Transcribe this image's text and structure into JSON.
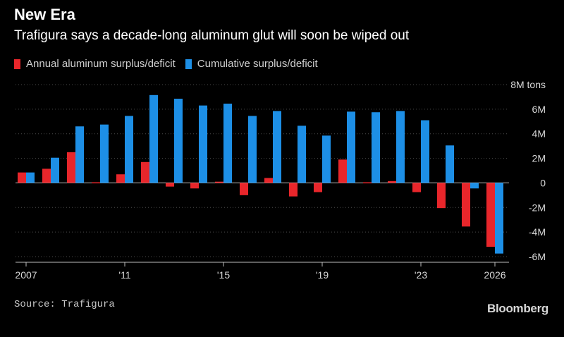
{
  "header": {
    "title": "New Era",
    "subtitle": "Trafigura says a decade-long aluminum glut will soon be wiped out"
  },
  "footer": {
    "source": "Source: Trafigura",
    "brand": "Bloomberg"
  },
  "colors": {
    "background": "#000000",
    "annual": "#e8262b",
    "cumulative": "#1d8fe6",
    "gridline": "#4a4a4a",
    "zero_line": "#bdbdbd",
    "text": "#d8d8d8"
  },
  "chart_data": {
    "type": "bar",
    "unit_label": "8M tons",
    "years": [
      2007,
      2008,
      2009,
      2010,
      2011,
      2012,
      2013,
      2014,
      2015,
      2016,
      2017,
      2018,
      2019,
      2020,
      2021,
      2022,
      2023,
      2024,
      2025,
      2026
    ],
    "x_tick_labels": [
      {
        "year": 2007,
        "label": "2007"
      },
      {
        "year": 2011,
        "label": "'11"
      },
      {
        "year": 2015,
        "label": "'15"
      },
      {
        "year": 2019,
        "label": "'19"
      },
      {
        "year": 2023,
        "label": "'23"
      },
      {
        "year": 2026,
        "label": "2026"
      }
    ],
    "series": [
      {
        "name": "Annual aluminum surplus/deficit",
        "color": "#e8262b",
        "values": [
          0.85,
          1.15,
          2.5,
          0.05,
          0.7,
          1.7,
          -0.3,
          -0.45,
          0.1,
          -1.0,
          0.4,
          -1.1,
          -0.75,
          1.9,
          0.05,
          0.15,
          -0.75,
          -2.05,
          -3.55,
          -5.2
        ]
      },
      {
        "name": "Cumulative surplus/deficit",
        "color": "#1d8fe6",
        "values": [
          0.85,
          2.05,
          4.6,
          4.75,
          5.45,
          7.15,
          6.85,
          6.3,
          6.45,
          5.45,
          5.85,
          4.65,
          3.85,
          5.8,
          5.75,
          5.85,
          5.1,
          3.05,
          -0.45,
          -5.75
        ]
      }
    ],
    "y_ticks": [
      {
        "value": 8,
        "label": "8M tons"
      },
      {
        "value": 6,
        "label": "6M"
      },
      {
        "value": 4,
        "label": "4M"
      },
      {
        "value": 2,
        "label": "2M"
      },
      {
        "value": 0,
        "label": "0"
      },
      {
        "value": -2,
        "label": "-2M"
      },
      {
        "value": -4,
        "label": "-4M"
      },
      {
        "value": -6,
        "label": "-6M"
      }
    ],
    "ylim": [
      -6,
      8
    ],
    "grid": true,
    "legend_position": "top-left"
  }
}
